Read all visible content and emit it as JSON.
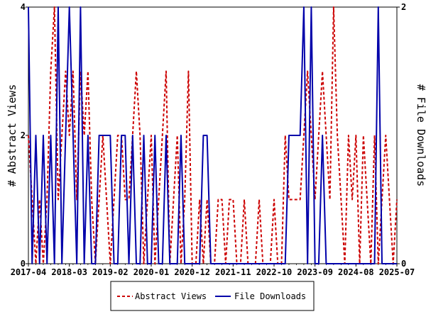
{
  "chart_data": {
    "type": "line",
    "title": "",
    "xlabel": "",
    "ylabel_left": "# Abstract Views",
    "ylabel_right": "# File Downloads",
    "x_tick_labels": [
      "2017-04",
      "2018-03",
      "2019-02",
      "2020-01",
      "2020-12",
      "2021-11",
      "2022-10",
      "2023-09",
      "2024-08",
      "2025-07"
    ],
    "x_range": [
      "2017-04",
      "2025-07"
    ],
    "ylim_left": [
      0,
      4
    ],
    "ylim_right": [
      0,
      2
    ],
    "yticks_left": [
      "0",
      "2",
      "4"
    ],
    "yticks_right": [
      "0",
      "2"
    ],
    "grid": false,
    "legend_position": "bottom-center",
    "series": [
      {
        "name": "Abstract Views",
        "axis": "left",
        "color": "#cc0000",
        "style": "dashed",
        "x": [
          "2017-04",
          "2017-05",
          "2017-06",
          "2017-07",
          "2017-08",
          "2017-09",
          "2017-10",
          "2017-11",
          "2017-12",
          "2018-01",
          "2018-02",
          "2018-03",
          "2018-04",
          "2018-05",
          "2018-06",
          "2018-07",
          "2018-08",
          "2018-09",
          "2018-10",
          "2018-11",
          "2018-12",
          "2019-01",
          "2019-02",
          "2019-03",
          "2019-04",
          "2019-05",
          "2019-06",
          "2019-07",
          "2019-08",
          "2019-09",
          "2019-10",
          "2019-11",
          "2019-12",
          "2020-01",
          "2020-02",
          "2020-03",
          "2020-04",
          "2020-05",
          "2020-06",
          "2020-07",
          "2020-08",
          "2020-09",
          "2020-10",
          "2020-11",
          "2020-12",
          "2021-01",
          "2021-02",
          "2021-03",
          "2021-04",
          "2021-05",
          "2021-06",
          "2021-07",
          "2021-08",
          "2021-09",
          "2021-10",
          "2021-11",
          "2021-12",
          "2022-01",
          "2022-02",
          "2022-03",
          "2022-04",
          "2022-05",
          "2022-06",
          "2022-07",
          "2022-08",
          "2022-09",
          "2022-10",
          "2022-11",
          "2022-12",
          "2023-01",
          "2023-02",
          "2023-03",
          "2023-04",
          "2023-05",
          "2023-06",
          "2023-07",
          "2023-08",
          "2023-09",
          "2023-10",
          "2023-11",
          "2023-12",
          "2024-01",
          "2024-02",
          "2024-03",
          "2024-04",
          "2024-05",
          "2024-06",
          "2024-07",
          "2024-08",
          "2024-09",
          "2024-10",
          "2024-11",
          "2024-12",
          "2025-01",
          "2025-02",
          "2025-03",
          "2025-04",
          "2025-05",
          "2025-06",
          "2025-07"
        ],
        "values": [
          2,
          1,
          0,
          1,
          0,
          1,
          3,
          4,
          1,
          2,
          3,
          2,
          3,
          1,
          3,
          2,
          3,
          1,
          0,
          1,
          2,
          1,
          0,
          1,
          2,
          2,
          1,
          1,
          2,
          3,
          2,
          0,
          1,
          2,
          0,
          1,
          2,
          3,
          0,
          1,
          2,
          0,
          1,
          3,
          0,
          0,
          1,
          0,
          1,
          0,
          0,
          1,
          1,
          0,
          1,
          1,
          0,
          0,
          1,
          0,
          0,
          0,
          1,
          0,
          0,
          0,
          1,
          0,
          0,
          2,
          1,
          1,
          1,
          1,
          2,
          3,
          2,
          1,
          2,
          3,
          2,
          1,
          4,
          2,
          1,
          0,
          2,
          1,
          2,
          0,
          2,
          1,
          0,
          2,
          0,
          1,
          2,
          1,
          0,
          1
        ]
      },
      {
        "name": "File Downloads",
        "axis": "right",
        "color": "#0000aa",
        "style": "solid",
        "x": [
          "2017-04",
          "2017-05",
          "2017-06",
          "2017-07",
          "2017-08",
          "2017-09",
          "2017-10",
          "2017-11",
          "2017-12",
          "2018-01",
          "2018-02",
          "2018-03",
          "2018-04",
          "2018-05",
          "2018-06",
          "2018-07",
          "2018-08",
          "2018-09",
          "2018-10",
          "2018-11",
          "2018-12",
          "2019-01",
          "2019-02",
          "2019-03",
          "2019-04",
          "2019-05",
          "2019-06",
          "2019-07",
          "2019-08",
          "2019-09",
          "2019-10",
          "2019-11",
          "2019-12",
          "2020-01",
          "2020-02",
          "2020-03",
          "2020-04",
          "2020-05",
          "2020-06",
          "2020-07",
          "2020-08",
          "2020-09",
          "2020-10",
          "2020-11",
          "2020-12",
          "2021-01",
          "2021-02",
          "2021-03",
          "2021-04",
          "2021-05",
          "2021-06",
          "2021-07",
          "2021-08",
          "2021-09",
          "2021-10",
          "2021-11",
          "2021-12",
          "2022-01",
          "2022-02",
          "2022-03",
          "2022-04",
          "2022-05",
          "2022-06",
          "2022-07",
          "2022-08",
          "2022-09",
          "2022-10",
          "2022-11",
          "2022-12",
          "2023-01",
          "2023-02",
          "2023-03",
          "2023-04",
          "2023-05",
          "2023-06",
          "2023-07",
          "2023-08",
          "2023-09",
          "2023-10",
          "2023-11",
          "2023-12",
          "2024-01",
          "2024-02",
          "2024-03",
          "2024-04",
          "2024-05",
          "2024-06",
          "2024-07",
          "2024-08",
          "2024-09",
          "2024-10",
          "2024-11",
          "2024-12",
          "2025-01",
          "2025-02",
          "2025-03",
          "2025-04",
          "2025-05",
          "2025-06",
          "2025-07"
        ],
        "values": [
          2,
          0,
          1,
          0,
          1,
          0,
          1,
          0,
          2,
          0,
          1,
          2,
          1,
          0,
          2,
          0,
          1,
          0,
          0,
          1,
          1,
          1,
          1,
          0,
          0,
          1,
          1,
          0,
          1,
          0,
          0,
          1,
          0,
          0,
          1,
          0,
          0,
          1,
          0,
          0,
          0,
          1,
          0,
          0,
          0,
          0,
          0,
          1,
          1,
          0,
          0,
          0,
          0,
          0,
          0,
          0,
          0,
          0,
          0,
          0,
          0,
          0,
          0,
          0,
          0,
          0,
          0,
          0,
          0,
          0,
          1,
          1,
          1,
          1,
          2,
          0,
          2,
          0,
          0,
          1,
          0,
          0,
          0,
          0,
          0,
          0,
          0,
          0,
          0,
          0,
          0,
          0,
          0,
          0,
          2,
          0,
          0,
          0,
          0,
          0
        ]
      }
    ]
  }
}
